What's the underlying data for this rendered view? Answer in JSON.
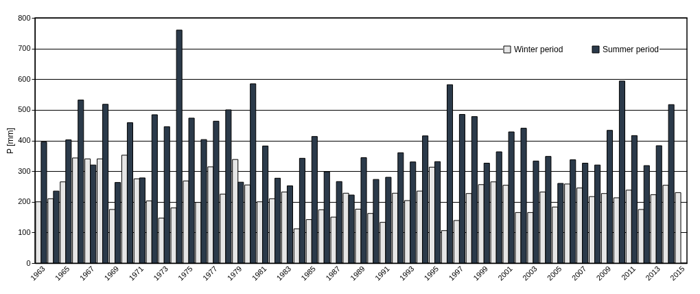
{
  "chart_data": {
    "type": "bar",
    "ylabel": "P [mm]",
    "categories": [
      "1963",
      null,
      "1965",
      null,
      "1967",
      null,
      "1969",
      null,
      "1971",
      null,
      "1973",
      null,
      "1975",
      null,
      "1977",
      null,
      "1979",
      null,
      "1981",
      null,
      "1983",
      null,
      "1985",
      null,
      "1987",
      null,
      "1989",
      null,
      "1991",
      null,
      "1993",
      null,
      "1995",
      null,
      "1997",
      null,
      "1999",
      null,
      "2001",
      null,
      "2003",
      null,
      "2005",
      null,
      "2007",
      null,
      "2009",
      null,
      "2011",
      null,
      "2013",
      null,
      "2015"
    ],
    "series": [
      {
        "name": "Winter period",
        "color": "#e6e6e6",
        "values": [
          200,
          210,
          265,
          343,
          340,
          340,
          175,
          352,
          275,
          203,
          147,
          180,
          268,
          198,
          314,
          225,
          338,
          255,
          200,
          210,
          232,
          112,
          142,
          174,
          150,
          228,
          176,
          162,
          133,
          228,
          204,
          235,
          313,
          106,
          139,
          227,
          256,
          265,
          254,
          165,
          165,
          232,
          183,
          258,
          245,
          217,
          227,
          213,
          238,
          175,
          223,
          254,
          230
        ]
      },
      {
        "name": "Summer period",
        "color": "#2b3a4a",
        "values": [
          395,
          235,
          402,
          532,
          320,
          518,
          263,
          458,
          278,
          484,
          445,
          760,
          473,
          403,
          463,
          500,
          264,
          585,
          382,
          277,
          252,
          342,
          413,
          298,
          266,
          222,
          344,
          273,
          280,
          360,
          330,
          415,
          331,
          582,
          485,
          478,
          326,
          363,
          428,
          440,
          333,
          348,
          260,
          337,
          326,
          320,
          433,
          594,
          416,
          318,
          383,
          517,
          null
        ]
      }
    ],
    "ylim": [
      0,
      800
    ],
    "yticks": [
      0,
      100,
      200,
      300,
      400,
      500,
      600,
      700,
      800
    ],
    "grid": "y",
    "legend": "top right"
  }
}
